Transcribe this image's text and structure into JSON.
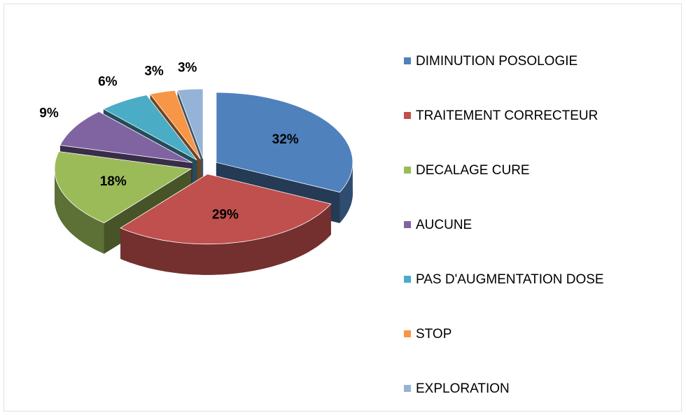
{
  "chart_data": {
    "type": "pie",
    "categories": [
      "DIMINUTION POSOLOGIE",
      "TRAITEMENT CORRECTEUR",
      "DECALAGE CURE",
      "AUCUNE",
      "PAS D'AUGMENTATION DOSE",
      "STOP",
      "EXPLORATION"
    ],
    "values": [
      32,
      29,
      18,
      9,
      6,
      3,
      3
    ],
    "value_labels": [
      "32%",
      "29%",
      "18%",
      "9%",
      "6%",
      "3%",
      "3%"
    ],
    "colors": [
      "#4f81bd",
      "#c0504d",
      "#9bbb59",
      "#8064a2",
      "#4bacc6",
      "#f79646",
      "#95b3d7"
    ],
    "legend": "right"
  }
}
